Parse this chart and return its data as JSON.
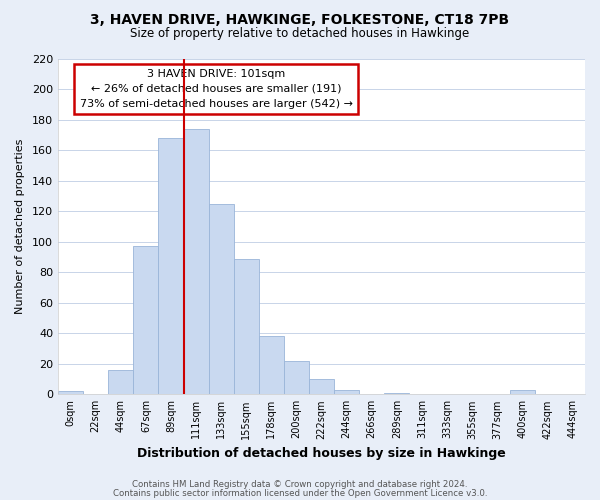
{
  "title": "3, HAVEN DRIVE, HAWKINGE, FOLKESTONE, CT18 7PB",
  "subtitle": "Size of property relative to detached houses in Hawkinge",
  "xlabel": "Distribution of detached houses by size in Hawkinge",
  "ylabel": "Number of detached properties",
  "bar_labels": [
    "0sqm",
    "22sqm",
    "44sqm",
    "67sqm",
    "89sqm",
    "111sqm",
    "133sqm",
    "155sqm",
    "178sqm",
    "200sqm",
    "222sqm",
    "244sqm",
    "266sqm",
    "289sqm",
    "311sqm",
    "333sqm",
    "355sqm",
    "377sqm",
    "400sqm",
    "422sqm",
    "444sqm"
  ],
  "bar_heights": [
    2,
    0,
    16,
    97,
    168,
    174,
    125,
    89,
    38,
    22,
    10,
    3,
    0,
    1,
    0,
    0,
    0,
    0,
    3,
    0,
    0
  ],
  "bar_color": "#c9d9f0",
  "bar_edge_color": "#9ab5d8",
  "vline_x": 4.5,
  "annotation_title": "3 HAVEN DRIVE: 101sqm",
  "annotation_line1": "← 26% of detached houses are smaller (191)",
  "annotation_line2": "73% of semi-detached houses are larger (542) →",
  "annotation_box_color": "#ffffff",
  "annotation_box_edge": "#cc0000",
  "vline_color": "#cc0000",
  "ylim": [
    0,
    220
  ],
  "yticks": [
    0,
    20,
    40,
    60,
    80,
    100,
    120,
    140,
    160,
    180,
    200,
    220
  ],
  "footer1": "Contains HM Land Registry data © Crown copyright and database right 2024.",
  "footer2": "Contains public sector information licensed under the Open Government Licence v3.0.",
  "bg_color": "#e8eef8",
  "plot_bg_color": "#ffffff",
  "grid_color": "#c8d4e8"
}
